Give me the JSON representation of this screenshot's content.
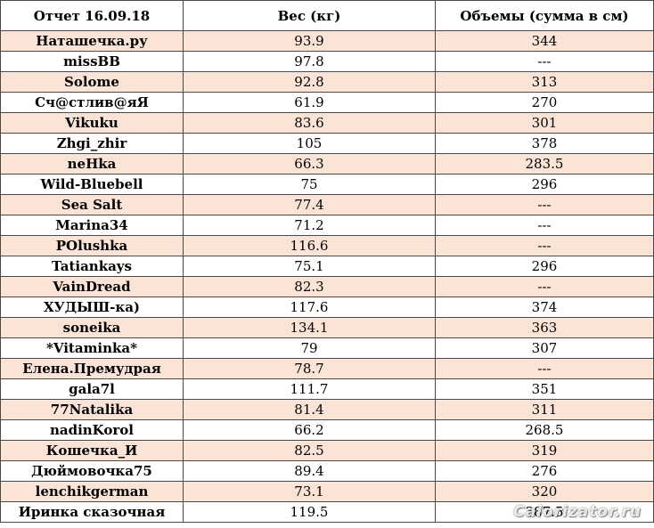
{
  "table": {
    "headers": [
      "Отчет 16.09.18",
      "Вес (кг)",
      "Объемы (сумма в см)"
    ],
    "rows": [
      {
        "name": "Наташечка.ру",
        "weight": "93.9",
        "volume": "344"
      },
      {
        "name": "missBB",
        "weight": "97.8",
        "volume": "---"
      },
      {
        "name": "Solome",
        "weight": "92.8",
        "volume": "313"
      },
      {
        "name": "Сч@стлив@яЯ",
        "weight": "61.9",
        "volume": "270"
      },
      {
        "name": "Vikuku",
        "weight": "83.6",
        "volume": "301"
      },
      {
        "name": "Zhgi_zhir",
        "weight": "105",
        "volume": "378"
      },
      {
        "name": "neHka",
        "weight": "66.3",
        "volume": "283.5"
      },
      {
        "name": "Wild-Bluebell",
        "weight": "75",
        "volume": "296"
      },
      {
        "name": "Sea Salt",
        "weight": "77.4",
        "volume": "---"
      },
      {
        "name": "Marina34",
        "weight": "71.2",
        "volume": "---"
      },
      {
        "name": "POlushka",
        "weight": "116.6",
        "volume": "---"
      },
      {
        "name": "Tatiankays",
        "weight": "75.1",
        "volume": "296"
      },
      {
        "name": "VainDread",
        "weight": "82.3",
        "volume": "---"
      },
      {
        "name": "ХУДЫШ-ка)",
        "weight": "117.6",
        "volume": "374"
      },
      {
        "name": "soneika",
        "weight": "134.1",
        "volume": "363"
      },
      {
        "name": "*Vitaminka*",
        "weight": "79",
        "volume": "307"
      },
      {
        "name": "Елена.Премудрая",
        "weight": "78.7",
        "volume": "---"
      },
      {
        "name": "gala7l",
        "weight": "111.7",
        "volume": "351"
      },
      {
        "name": "77Natalika",
        "weight": "81.4",
        "volume": "311"
      },
      {
        "name": "nadinKorol",
        "weight": "66.2",
        "volume": "268.5"
      },
      {
        "name": "Кошечка_И",
        "weight": "82.5",
        "volume": "319"
      },
      {
        "name": "Дюймовочка75",
        "weight": "89.4",
        "volume": "276"
      },
      {
        "name": "lenchikgerman",
        "weight": "73.1",
        "volume": "320"
      },
      {
        "name": "Иринка сказочная",
        "weight": "119.5",
        "volume": "387.5"
      }
    ],
    "shade_color": "#fbe4d5"
  },
  "watermark": "Calorizator.ru"
}
